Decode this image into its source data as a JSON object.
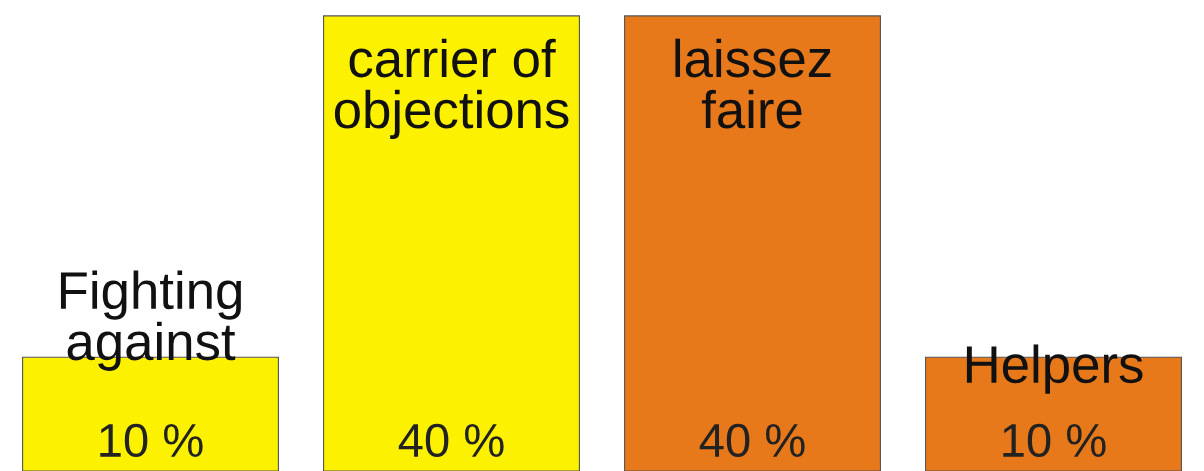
{
  "chart_data": {
    "type": "bar",
    "categories": [
      "Fighting against",
      "carrier of objections",
      "laissez faire",
      "Helpers"
    ],
    "values": [
      10,
      40,
      40,
      10
    ],
    "colors": [
      "#fcf200",
      "#fcf200",
      "#e8791b",
      "#e8791b"
    ],
    "value_labels": [
      "10 %",
      "40 %",
      "40 %",
      "10 %"
    ]
  }
}
